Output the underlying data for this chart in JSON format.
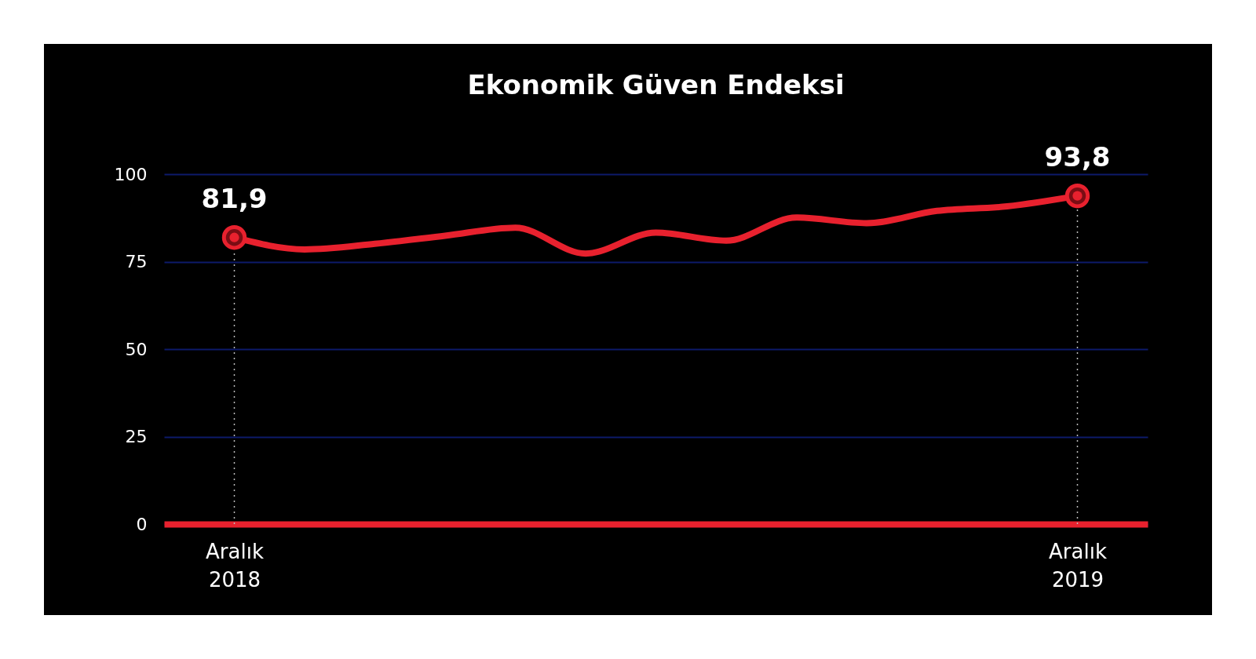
{
  "chart_data": {
    "type": "line",
    "title": "Ekonomik Güven Endeksi",
    "categories": [
      "Aralık 2018",
      null,
      null,
      null,
      null,
      null,
      null,
      null,
      null,
      null,
      null,
      null,
      "Aralık 2019"
    ],
    "series": [
      {
        "color": "#e8212e",
        "values": [
          81.9,
          78.5,
          80.1,
          82.4,
          84.7,
          77.3,
          83.3,
          81.0,
          87.6,
          86.0,
          89.5,
          90.8,
          93.8
        ],
        "value_labels": [
          "81,9",
          null,
          null,
          null,
          null,
          null,
          null,
          null,
          null,
          null,
          null,
          null,
          "93,8"
        ]
      }
    ],
    "ylim": [
      0,
      100
    ],
    "yticks": [
      0,
      25,
      50,
      75,
      100
    ],
    "grid": "y",
    "ref_lines": [
      {
        "axis": "x",
        "value": "Aralık 2018",
        "line_style": "dotted",
        "color": "#bbbbbb"
      },
      {
        "axis": "x",
        "value": "Aralık 2019",
        "line_style": "dotted",
        "color": "#bbbbbb"
      }
    ]
  }
}
